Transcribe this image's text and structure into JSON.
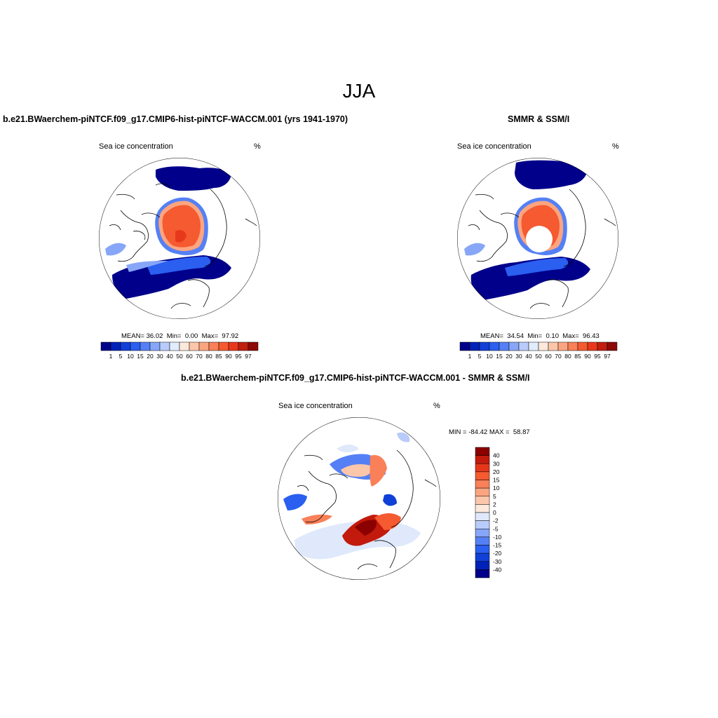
{
  "figure": {
    "season": "JJA",
    "panels": [
      {
        "title": "b.e21.BWaerchem-piNTCF.f09_g17.CMIP6-hist-piNTCF-WACCM.001 (yrs 1941-1970)",
        "left_label": "Sea ice concentration",
        "right_label": "%",
        "mean_label": "MEAN=",
        "mean": "36.02",
        "min_label": "Min=",
        "min": "0.00",
        "max_label": "Max=",
        "max": "97.92"
      },
      {
        "title": "SMMR & SSM/I",
        "left_label": "Sea ice concentration",
        "right_label": "%",
        "mean_label": "MEAN=",
        "mean": "34.54",
        "min_label": "Min=",
        "min": "0.10",
        "max_label": "Max=",
        "max": "96.43"
      },
      {
        "title": "b.e21.BWaerchem-piNTCF.f09_g17.CMIP6-hist-piNTCF-WACCM.001 - SMMR & SSM/I",
        "left_label": "Sea ice concentration",
        "right_label": "%",
        "minmax_text": "MIN = -84.42 MAX =  58.87"
      }
    ],
    "colorbar_abs": {
      "ticks": [
        "1",
        "5",
        "10",
        "15",
        "20",
        "30",
        "40",
        "50",
        "60",
        "70",
        "80",
        "85",
        "90",
        "95",
        "97"
      ],
      "colors": [
        "#00008a",
        "#0022b8",
        "#1040d8",
        "#2a5ff0",
        "#5580f5",
        "#87a6f8",
        "#b9cbfb",
        "#e1ecfd",
        "#fde8dc",
        "#fcc6aa",
        "#fba580",
        "#f98058",
        "#f55a30",
        "#e8381c",
        "#c11e10",
        "#8e0a06"
      ]
    },
    "colorbar_diff": {
      "ticks": [
        "40",
        "30",
        "20",
        "15",
        "10",
        "5",
        "2",
        "0",
        "-2",
        "-5",
        "-10",
        "-15",
        "-20",
        "-30",
        "-40"
      ],
      "colors": [
        "#8b0000",
        "#c21a0c",
        "#e5361a",
        "#f55a30",
        "#f98058",
        "#fba580",
        "#fcc6aa",
        "#fde8dc",
        "#dfe9fb",
        "#b9cbfb",
        "#87a6f8",
        "#5580f5",
        "#2a5ff0",
        "#1040d8",
        "#0022b8",
        "#00008a"
      ]
    }
  }
}
